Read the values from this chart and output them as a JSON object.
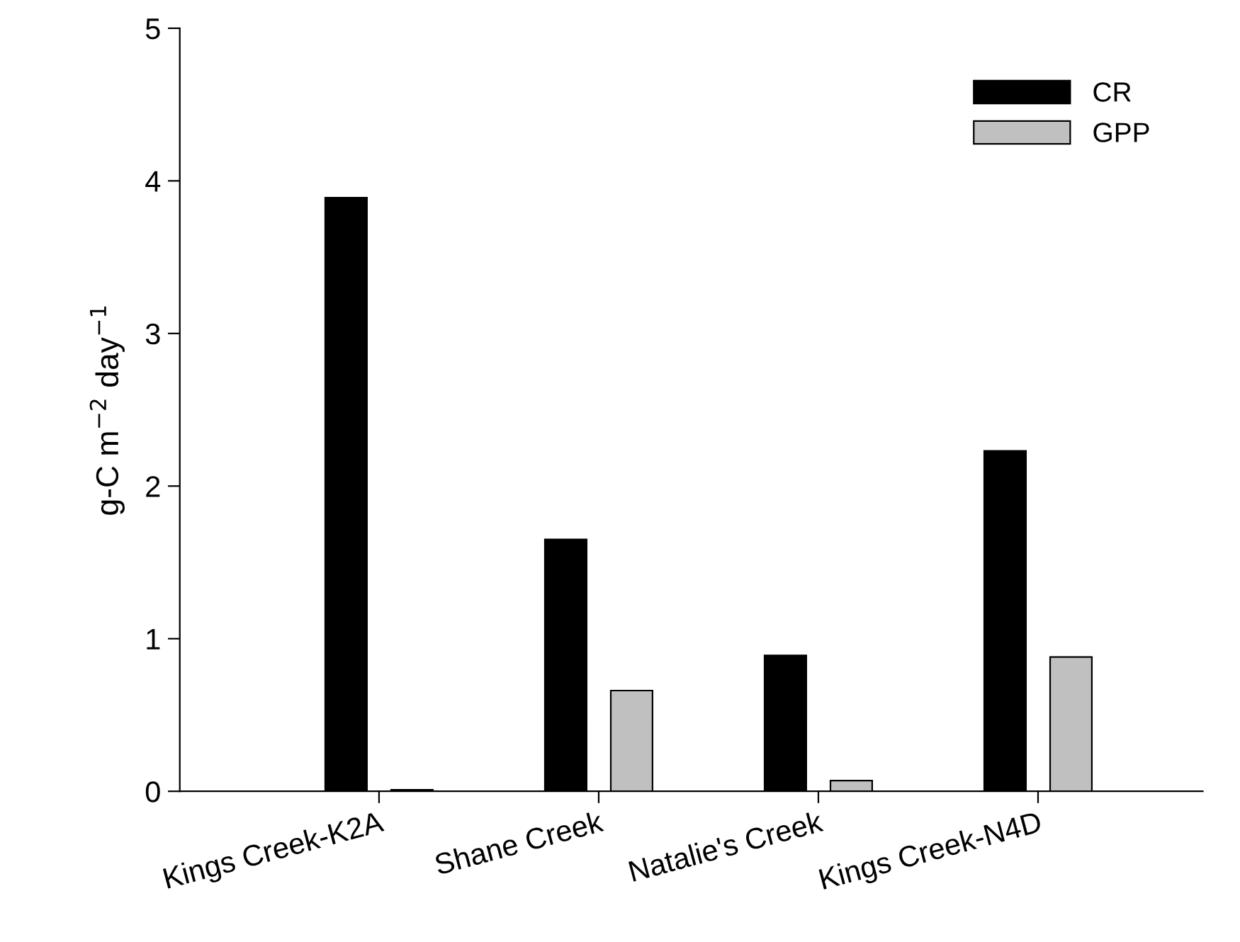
{
  "chart_data": {
    "type": "bar",
    "ylabel": "g-C m$^{−2}$ day$^{−1}$",
    "categories": [
      "Kings Creek-K2A",
      "Shane Creek",
      "Natalie's Creek",
      "Kings Creek-N4D"
    ],
    "series": [
      {
        "name": "CR",
        "color": "#000000",
        "values": [
          3.89,
          1.65,
          0.89,
          2.23
        ]
      },
      {
        "name": "GPP",
        "color": "#c0c0c0",
        "values": [
          0.01,
          0.66,
          0.07,
          0.88
        ]
      }
    ],
    "ylim": [
      0,
      5
    ],
    "yticks": [
      0,
      1,
      2,
      3,
      4,
      5
    ],
    "grid": false,
    "legend": "top right"
  }
}
